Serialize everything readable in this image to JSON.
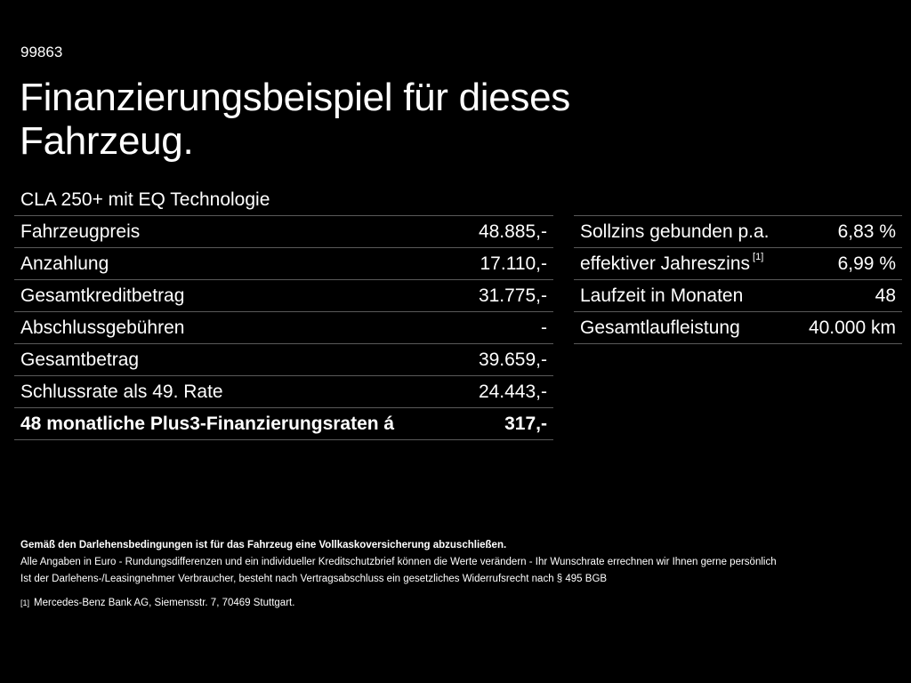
{
  "header": {
    "code": "99863",
    "title": "Finanzierungsbeispiel für dieses Fahrzeug.",
    "model": "CLA 250+ mit EQ Technologie"
  },
  "financing_table": {
    "rows": [
      {
        "label": "Fahrzeugpreis",
        "value": "48.885,-"
      },
      {
        "label": "Anzahlung",
        "value": "17.110,-"
      },
      {
        "label": "Gesamtkreditbetrag",
        "value": "31.775,-"
      },
      {
        "label": "Abschlussgebühren",
        "value": "-"
      },
      {
        "label": "Gesamtbetrag",
        "value": "39.659,-"
      },
      {
        "label": "Schlussrate als 49. Rate",
        "value": "24.443,-"
      },
      {
        "label": "48 monatliche Plus3-Finanzierungsraten á",
        "value": "317,-"
      }
    ]
  },
  "terms_table": {
    "rows": [
      {
        "label": "Sollzins gebunden p.a.",
        "ref": "",
        "value": "6,83 %"
      },
      {
        "label": "effektiver Jahreszins",
        "ref": "[1]",
        "value": "6,99 %"
      },
      {
        "label": "Laufzeit in Monaten",
        "ref": "",
        "value": "48"
      },
      {
        "label": "Gesamtlaufleistung",
        "ref": "",
        "value": "40.000 km"
      }
    ]
  },
  "notes": {
    "insurance": "Gemäß den Darlehensbedingungen ist für das Fahrzeug eine Vollkaskoversicherung abzuschließen.",
    "euro": "Alle Angaben in Euro - Rundungsdifferenzen und ein individueller Kreditschutzbrief können die Werte verändern - Ihr Wunschrate errechnen wir Ihnen gerne persönlich",
    "withdrawal": "Ist der Darlehens-/Leasingnehmer Verbraucher, besteht nach Vertragsabschluss ein gesetzliches Widerrufsrecht nach § 495 BGB"
  },
  "footnote": {
    "mark": "[1]",
    "text": "Mercedes-Benz Bank AG, Siemensstr. 7, 70469 Stuttgart."
  },
  "colors": {
    "background": "#000000",
    "text": "#ffffff",
    "divider": "#5a5a5a"
  }
}
